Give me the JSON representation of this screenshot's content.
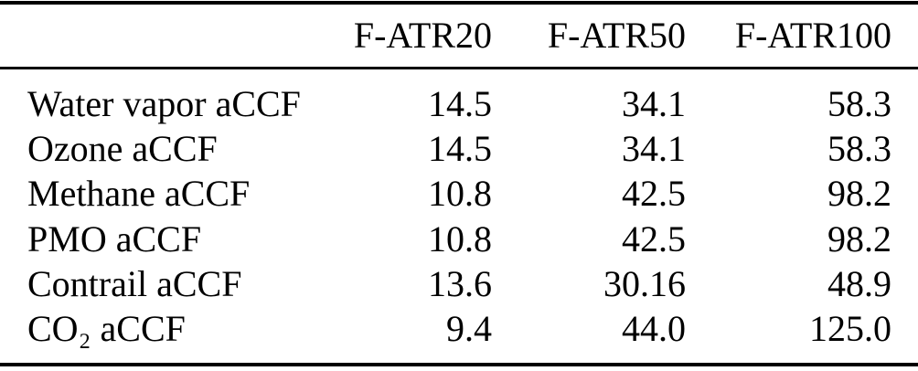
{
  "table": {
    "columns": [
      "F-ATR20",
      "F-ATR50",
      "F-ATR100"
    ],
    "rows": [
      {
        "label": "Water vapor aCCF",
        "values": [
          "14.5",
          "34.1",
          "58.3"
        ]
      },
      {
        "label": "Ozone aCCF",
        "values": [
          "14.5",
          "34.1",
          "58.3"
        ]
      },
      {
        "label": "Methane aCCF",
        "values": [
          "10.8",
          "42.5",
          "98.2"
        ]
      },
      {
        "label": "PMO aCCF",
        "values": [
          "10.8",
          "42.5",
          "98.2"
        ]
      },
      {
        "label": "Contrail aCCF",
        "values": [
          "13.6",
          "30.16",
          "48.9"
        ]
      },
      {
        "label": "CO₂ aCCF",
        "values": [
          "9.4",
          "44.0",
          "125.0"
        ]
      }
    ],
    "colors": {
      "text": "#000000",
      "background": "#ffffff",
      "rule": "#000000"
    }
  }
}
